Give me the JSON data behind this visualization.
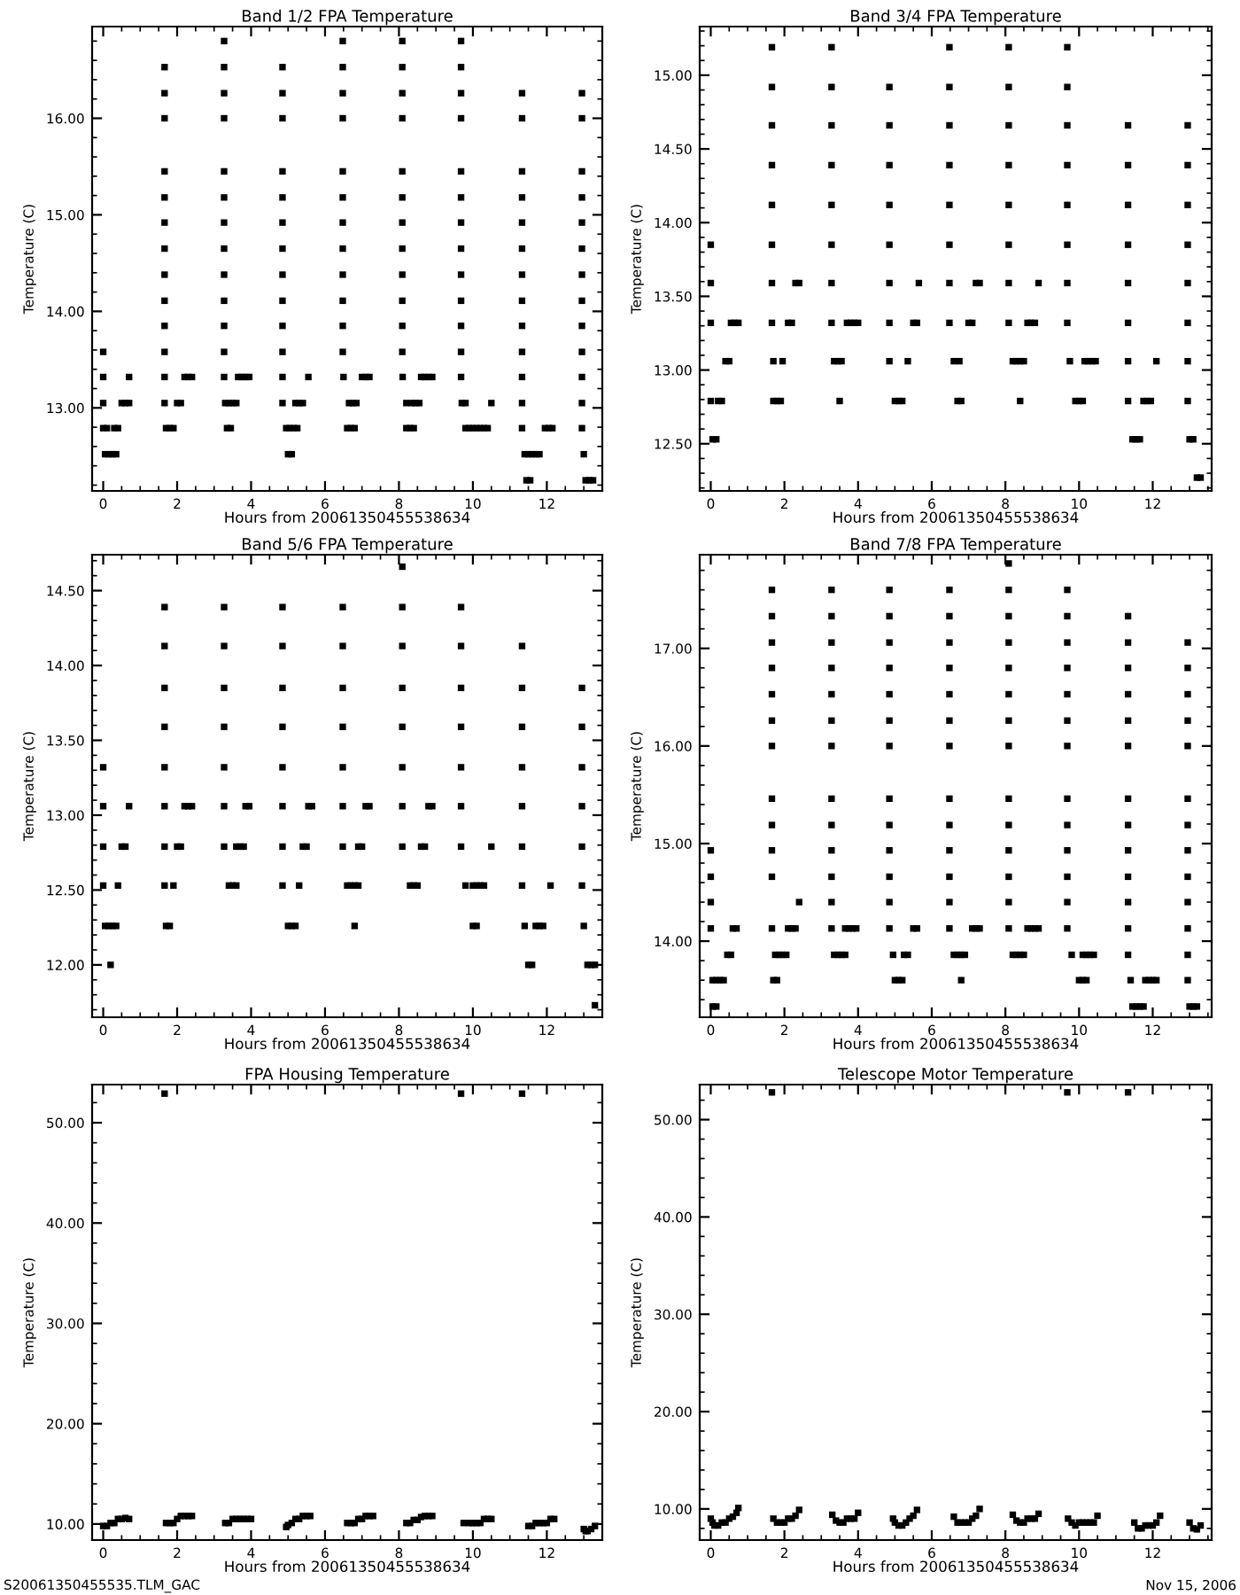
{
  "chart_data": [
    {
      "type": "scatter",
      "title": "Band 1/2 FPA Temperature",
      "xlabel": "Hours from 20061350455538634",
      "ylabel": "Temperature (C)",
      "xlim": [
        -0.3,
        13.5
      ],
      "xticks": [
        0,
        2,
        4,
        6,
        8,
        10,
        12
      ],
      "ylim": [
        12.14,
        16.95
      ],
      "yticks": [
        {
          "value": 13,
          "label": "13.00"
        },
        {
          "value": 14,
          "label": "14.00"
        },
        {
          "value": 15,
          "label": "15.00"
        },
        {
          "value": 16,
          "label": "16.00"
        }
      ],
      "marker": "square",
      "grid": false,
      "series": [
        {
          "color": "#000000",
          "x": [
            0,
            0,
            0,
            0,
            0.1,
            0.05,
            0.15,
            0.25,
            0.35,
            0.3,
            0.4,
            0.5,
            0.6,
            0.7,
            0.7,
            1.66,
            1.66,
            1.66,
            1.66,
            1.66,
            1.66,
            1.66,
            1.66,
            1.66,
            1.66,
            1.66,
            1.66,
            1.66,
            1.7,
            1.8,
            1.9,
            2.0,
            2.1,
            2.2,
            2.3,
            2.4,
            3.27,
            3.27,
            3.27,
            3.27,
            3.27,
            3.27,
            3.27,
            3.27,
            3.27,
            3.27,
            3.27,
            3.27,
            3.27,
            3.35,
            3.45,
            3.3,
            3.4,
            3.5,
            3.6,
            3.65,
            3.75,
            3.85,
            3.95,
            4.85,
            4.85,
            4.85,
            4.85,
            4.85,
            4.85,
            4.85,
            4.85,
            4.85,
            4.85,
            4.85,
            4.85,
            4.85,
            4.95,
            5.05,
            5.15,
            5.25,
            5.0,
            5.1,
            5.2,
            5.3,
            5.4,
            5.55,
            6.48,
            6.48,
            6.48,
            6.48,
            6.48,
            6.48,
            6.48,
            6.48,
            6.48,
            6.48,
            6.48,
            6.48,
            6.5,
            6.6,
            6.7,
            6.8,
            6.65,
            6.75,
            6.85,
            7.0,
            7.1,
            7.2,
            8.09,
            8.09,
            8.09,
            8.09,
            8.09,
            8.09,
            8.09,
            8.09,
            8.09,
            8.09,
            8.09,
            8.09,
            8.1,
            8.2,
            8.3,
            8.4,
            8.2,
            8.35,
            8.45,
            8.55,
            8.6,
            8.7,
            8.8,
            8.9,
            9.68,
            9.68,
            9.68,
            9.68,
            9.68,
            9.68,
            9.68,
            9.68,
            9.68,
            9.68,
            9.68,
            9.68,
            9.68,
            9.7,
            9.8,
            9.8,
            9.9,
            10.0,
            10.1,
            10.2,
            10.3,
            10.4,
            10.5,
            11.33,
            11.33,
            11.33,
            11.33,
            11.33,
            11.33,
            11.33,
            11.33,
            11.33,
            11.33,
            11.33,
            11.33,
            11.33,
            11.4,
            11.5,
            11.6,
            11.7,
            11.8,
            11.45,
            11.55,
            11.95,
            12.05,
            12.15,
            12.95,
            12.95,
            12.95,
            12.95,
            12.95,
            12.95,
            12.95,
            12.95,
            12.95,
            12.95,
            12.95,
            12.95,
            12.95,
            13.0,
            13.05,
            13.15,
            13.25
          ],
          "values": [
            13.58,
            13.32,
            13.05,
            12.79,
            12.79,
            12.52,
            12.52,
            12.52,
            12.52,
            12.79,
            12.79,
            13.05,
            13.05,
            13.05,
            13.32,
            13.05,
            13.32,
            13.58,
            13.85,
            14.11,
            14.38,
            14.65,
            14.92,
            15.18,
            15.45,
            16.0,
            16.26,
            16.53,
            12.79,
            12.79,
            12.79,
            13.05,
            13.05,
            13.32,
            13.32,
            13.32,
            13.32,
            13.58,
            13.85,
            14.11,
            14.38,
            14.65,
            14.92,
            15.18,
            15.45,
            16.0,
            16.26,
            16.53,
            16.8,
            12.79,
            12.79,
            13.05,
            13.05,
            13.05,
            13.05,
            13.32,
            13.32,
            13.32,
            13.32,
            13.32,
            13.58,
            13.85,
            14.11,
            14.38,
            14.65,
            14.92,
            15.18,
            15.45,
            16.0,
            16.26,
            16.53,
            13.05,
            12.79,
            12.79,
            12.79,
            12.79,
            12.52,
            12.52,
            13.05,
            13.05,
            13.05,
            13.32,
            13.58,
            13.85,
            14.11,
            14.38,
            14.65,
            14.92,
            15.18,
            15.45,
            16.0,
            16.26,
            16.53,
            16.8,
            13.32,
            12.79,
            12.79,
            12.79,
            13.05,
            13.05,
            13.05,
            13.32,
            13.32,
            13.32,
            13.58,
            13.85,
            14.11,
            14.38,
            14.65,
            14.92,
            15.18,
            15.45,
            16.0,
            16.26,
            16.53,
            16.8,
            13.32,
            12.79,
            12.79,
            12.79,
            13.05,
            13.05,
            13.05,
            13.05,
            13.32,
            13.32,
            13.32,
            13.32,
            13.32,
            13.58,
            13.85,
            14.11,
            14.38,
            14.65,
            14.92,
            15.18,
            15.45,
            16.0,
            16.26,
            16.53,
            16.8,
            13.05,
            13.05,
            12.79,
            12.79,
            12.79,
            12.79,
            12.79,
            12.79,
            12.79,
            13.05,
            12.79,
            13.05,
            13.32,
            13.58,
            13.85,
            14.11,
            14.38,
            14.65,
            14.92,
            15.18,
            15.45,
            16.0,
            16.26,
            12.52,
            12.52,
            12.52,
            12.52,
            12.52,
            12.25,
            12.25,
            12.79,
            12.79,
            12.79,
            12.79,
            13.05,
            13.32,
            13.58,
            13.85,
            14.11,
            14.38,
            14.65,
            14.92,
            15.18,
            15.45,
            16.0,
            16.26,
            12.52,
            12.25,
            12.25,
            12.25
          ]
        }
      ]
    },
    {
      "type": "scatter",
      "title": "Band 3/4 FPA Temperature",
      "xlabel": "Hours from 20061350455538634",
      "ylabel": "Temperature (C)",
      "xlim": [
        -0.3,
        13.6
      ],
      "xticks": [
        0,
        2,
        4,
        6,
        8,
        10,
        12
      ],
      "ylim": [
        12.18,
        15.33
      ],
      "yticks": [
        {
          "value": 12.5,
          "label": "12.50"
        },
        {
          "value": 13,
          "label": "13.00"
        },
        {
          "value": 13.5,
          "label": "13.50"
        },
        {
          "value": 14,
          "label": "14.00"
        },
        {
          "value": 14.5,
          "label": "14.50"
        },
        {
          "value": 15,
          "label": "15.00"
        }
      ],
      "marker": "square",
      "grid": false,
      "series": [
        {
          "color": "#000000",
          "x": [
            0,
            0,
            0,
            0,
            0.05,
            0.15,
            0.2,
            0.3,
            0.4,
            0.5,
            0.55,
            0.65,
            0.75,
            1.66,
            1.66,
            1.66,
            1.66,
            1.66,
            1.66,
            1.66,
            1.66,
            1.7,
            1.8,
            1.9,
            1.7,
            1.95,
            2.1,
            2.2,
            2.3,
            2.4,
            3.28,
            3.28,
            3.28,
            3.28,
            3.28,
            3.28,
            3.28,
            3.28,
            3.5,
            3.35,
            3.45,
            3.55,
            3.7,
            3.8,
            3.9,
            4.0,
            4.85,
            4.85,
            4.85,
            4.85,
            4.85,
            4.85,
            4.85,
            4.85,
            5.0,
            5.1,
            5.2,
            5.35,
            5.5,
            5.6,
            5.65,
            6.48,
            6.48,
            6.48,
            6.48,
            6.48,
            6.48,
            6.48,
            6.48,
            6.6,
            6.75,
            6.7,
            6.8,
            7.0,
            7.1,
            7.2,
            7.3,
            8.09,
            8.09,
            8.09,
            8.09,
            8.09,
            8.09,
            8.09,
            8.09,
            8.2,
            8.3,
            8.4,
            8.5,
            8.4,
            8.6,
            8.7,
            8.8,
            8.9,
            9.68,
            9.68,
            9.68,
            9.68,
            9.68,
            9.68,
            9.68,
            9.68,
            9.75,
            9.9,
            10.0,
            10.1,
            10.15,
            10.25,
            10.35,
            10.45,
            11.33,
            11.33,
            11.33,
            11.33,
            11.33,
            11.33,
            11.33,
            11.33,
            11.45,
            11.55,
            11.65,
            11.75,
            11.85,
            11.95,
            12.1,
            12.95,
            12.95,
            12.95,
            12.95,
            12.95,
            12.95,
            12.95,
            12.95,
            13.0,
            13.1,
            13.2,
            13.3
          ],
          "values": [
            13.85,
            13.59,
            13.32,
            12.79,
            12.53,
            12.53,
            12.79,
            12.79,
            13.06,
            13.06,
            13.32,
            13.32,
            13.32,
            13.32,
            13.59,
            13.85,
            14.12,
            14.39,
            14.66,
            14.92,
            15.19,
            12.79,
            12.79,
            12.79,
            13.06,
            13.06,
            13.32,
            13.32,
            13.59,
            13.59,
            13.32,
            13.59,
            13.85,
            14.12,
            14.39,
            14.66,
            14.92,
            15.19,
            12.79,
            13.06,
            13.06,
            13.06,
            13.32,
            13.32,
            13.32,
            13.32,
            13.06,
            13.32,
            13.59,
            13.85,
            14.12,
            14.39,
            14.66,
            14.92,
            12.79,
            12.79,
            12.79,
            13.06,
            13.32,
            13.32,
            13.59,
            13.32,
            13.59,
            13.85,
            14.12,
            14.39,
            14.66,
            14.92,
            15.19,
            13.06,
            13.06,
            12.79,
            12.79,
            13.32,
            13.32,
            13.59,
            13.59,
            13.32,
            13.59,
            13.85,
            14.12,
            14.39,
            14.66,
            14.92,
            15.19,
            13.06,
            13.06,
            13.06,
            13.06,
            12.79,
            13.32,
            13.32,
            13.32,
            13.59,
            13.32,
            13.59,
            13.85,
            14.12,
            14.39,
            14.66,
            14.92,
            15.19,
            13.06,
            12.79,
            12.79,
            12.79,
            13.06,
            13.06,
            13.06,
            13.06,
            12.79,
            13.06,
            13.32,
            13.59,
            13.85,
            14.12,
            14.39,
            14.66,
            12.53,
            12.53,
            12.53,
            12.79,
            12.79,
            12.79,
            13.06,
            12.79,
            13.06,
            13.32,
            13.59,
            13.85,
            14.12,
            14.39,
            14.66,
            12.53,
            12.53,
            12.27,
            12.27
          ]
        }
      ]
    },
    {
      "type": "scatter",
      "title": "Band 5/6 FPA Temperature",
      "xlabel": "Hours from 20061350455538634",
      "ylabel": "Temperature (C)",
      "xlim": [
        -0.3,
        13.5
      ],
      "xticks": [
        0,
        2,
        4,
        6,
        8,
        10,
        12
      ],
      "ylim": [
        11.65,
        14.74
      ],
      "yticks": [
        {
          "value": 12,
          "label": "12.00"
        },
        {
          "value": 12.5,
          "label": "12.50"
        },
        {
          "value": 13,
          "label": "13.00"
        },
        {
          "value": 13.5,
          "label": "13.50"
        },
        {
          "value": 14,
          "label": "14.00"
        },
        {
          "value": 14.5,
          "label": "14.50"
        }
      ],
      "marker": "square",
      "grid": false,
      "series": [
        {
          "color": "#000000",
          "x": [
            0,
            0,
            0,
            0,
            0.05,
            0.15,
            0.25,
            0.35,
            0.2,
            0.4,
            0.5,
            0.6,
            0.7,
            1.66,
            1.66,
            1.66,
            1.66,
            1.66,
            1.66,
            1.66,
            1.66,
            1.7,
            1.8,
            1.9,
            2.0,
            2.1,
            2.2,
            2.3,
            2.4,
            3.27,
            3.27,
            3.27,
            3.27,
            3.27,
            3.27,
            3.27,
            3.4,
            3.5,
            3.6,
            3.6,
            3.7,
            3.8,
            3.85,
            3.95,
            4.85,
            4.85,
            4.85,
            4.85,
            4.85,
            4.85,
            4.85,
            4.85,
            5.0,
            5.1,
            5.2,
            5.3,
            5.4,
            5.5,
            5.55,
            5.65,
            6.48,
            6.48,
            6.48,
            6.48,
            6.48,
            6.48,
            6.48,
            6.8,
            6.6,
            6.7,
            6.8,
            6.9,
            6.9,
            7.0,
            7.1,
            7.2,
            8.09,
            8.09,
            8.09,
            8.09,
            8.09,
            8.09,
            8.09,
            8.09,
            8.3,
            8.4,
            8.5,
            8.6,
            8.7,
            8.8,
            8.9,
            9.68,
            9.68,
            9.68,
            9.68,
            9.68,
            9.68,
            9.68,
            9.8,
            10.0,
            10.1,
            10.0,
            10.1,
            10.2,
            10.3,
            10.5,
            11.33,
            11.33,
            11.33,
            11.33,
            11.33,
            11.33,
            11.33,
            11.4,
            11.5,
            11.6,
            11.7,
            11.8,
            11.9,
            12.1,
            12.95,
            12.95,
            12.95,
            12.95,
            12.95,
            12.95,
            13.0,
            13.1,
            13.2,
            13.3,
            13.3
          ],
          "values": [
            13.32,
            13.06,
            12.79,
            12.53,
            12.26,
            12.26,
            12.26,
            12.26,
            12.0,
            12.53,
            12.79,
            12.79,
            13.06,
            12.53,
            12.79,
            13.06,
            13.32,
            13.59,
            13.85,
            14.13,
            14.39,
            12.26,
            12.26,
            12.53,
            12.79,
            12.79,
            13.06,
            13.06,
            13.06,
            12.79,
            13.06,
            13.32,
            13.59,
            13.85,
            14.13,
            14.39,
            12.53,
            12.53,
            12.53,
            12.79,
            12.79,
            12.79,
            13.06,
            13.06,
            12.53,
            12.79,
            13.06,
            13.32,
            13.59,
            13.85,
            14.13,
            14.39,
            12.26,
            12.26,
            12.26,
            12.53,
            12.79,
            12.79,
            13.06,
            13.06,
            12.79,
            13.06,
            13.32,
            13.59,
            13.85,
            14.13,
            14.39,
            12.26,
            12.53,
            12.53,
            12.53,
            12.53,
            12.79,
            12.79,
            13.06,
            13.06,
            12.79,
            13.06,
            13.32,
            13.59,
            13.85,
            14.13,
            14.39,
            14.66,
            12.53,
            12.53,
            12.53,
            12.79,
            12.79,
            13.06,
            13.06,
            12.79,
            13.06,
            13.32,
            13.59,
            13.85,
            14.13,
            14.39,
            12.53,
            12.26,
            12.26,
            12.53,
            12.53,
            12.53,
            12.53,
            12.79,
            12.53,
            12.79,
            13.06,
            13.32,
            13.59,
            13.85,
            14.13,
            12.26,
            12.0,
            12.0,
            12.26,
            12.26,
            12.26,
            12.53,
            12.53,
            12.79,
            13.06,
            13.32,
            13.59,
            13.85,
            12.26,
            12.0,
            12.0,
            12.0,
            11.73
          ]
        }
      ]
    },
    {
      "type": "scatter",
      "title": "Band 7/8 FPA Temperature",
      "xlabel": "Hours from 20061350455538634",
      "ylabel": "Temperature (C)",
      "xlim": [
        -0.3,
        13.6
      ],
      "xticks": [
        0,
        2,
        4,
        6,
        8,
        10,
        12
      ],
      "ylim": [
        13.22,
        17.96
      ],
      "yticks": [
        {
          "value": 14,
          "label": "14.00"
        },
        {
          "value": 15,
          "label": "15.00"
        },
        {
          "value": 16,
          "label": "16.00"
        },
        {
          "value": 17,
          "label": "17.00"
        }
      ],
      "marker": "square",
      "grid": false,
      "series": [
        {
          "color": "#000000",
          "x": [
            0,
            0,
            0,
            0,
            0.05,
            0.15,
            0.05,
            0.15,
            0.25,
            0.35,
            0.45,
            0.55,
            0.6,
            0.7,
            1.66,
            1.66,
            1.66,
            1.66,
            1.66,
            1.66,
            1.66,
            1.66,
            1.66,
            1.66,
            1.66,
            1.66,
            1.7,
            1.8,
            1.75,
            1.85,
            1.95,
            2.05,
            2.1,
            2.2,
            2.3,
            2.4,
            3.28,
            3.28,
            3.28,
            3.28,
            3.28,
            3.28,
            3.28,
            3.28,
            3.28,
            3.28,
            3.28,
            3.28,
            3.28,
            3.35,
            3.45,
            3.55,
            3.65,
            3.65,
            3.75,
            3.85,
            3.95,
            4.85,
            4.85,
            4.85,
            4.85,
            4.85,
            4.85,
            4.85,
            4.85,
            4.85,
            4.85,
            4.85,
            4.85,
            4.85,
            5.0,
            5.1,
            5.2,
            4.95,
            5.25,
            5.35,
            5.5,
            5.6,
            6.48,
            6.48,
            6.48,
            6.48,
            6.48,
            6.48,
            6.48,
            6.48,
            6.48,
            6.48,
            6.48,
            6.48,
            6.48,
            6.8,
            6.6,
            6.7,
            6.8,
            6.9,
            7.1,
            7.2,
            7.3,
            8.09,
            8.09,
            8.09,
            8.09,
            8.09,
            8.09,
            8.09,
            8.09,
            8.09,
            8.09,
            8.09,
            8.09,
            8.09,
            8.09,
            8.2,
            8.3,
            8.4,
            8.5,
            8.6,
            8.7,
            8.8,
            8.9,
            9.68,
            9.68,
            9.68,
            9.68,
            9.68,
            9.68,
            9.68,
            9.68,
            9.68,
            9.68,
            9.68,
            9.68,
            9.68,
            9.8,
            10.0,
            10.1,
            10.2,
            10.1,
            10.2,
            10.3,
            10.4,
            11.33,
            11.33,
            11.33,
            11.33,
            11.33,
            11.33,
            11.33,
            11.33,
            11.33,
            11.33,
            11.33,
            11.33,
            11.33,
            11.4,
            11.45,
            11.55,
            11.65,
            11.75,
            11.8,
            11.9,
            12.0,
            12.1,
            12.95,
            12.95,
            12.95,
            12.95,
            12.95,
            12.95,
            12.95,
            12.95,
            12.95,
            12.95,
            12.95,
            12.95,
            12.95,
            13.0,
            13.1,
            13.2
          ],
          "values": [
            14.93,
            14.66,
            14.4,
            14.13,
            13.33,
            13.33,
            13.6,
            13.6,
            13.6,
            13.6,
            13.86,
            13.86,
            14.13,
            14.13,
            14.13,
            14.66,
            14.93,
            15.19,
            15.46,
            16.0,
            16.26,
            16.53,
            16.8,
            17.06,
            17.33,
            17.6,
            13.6,
            13.6,
            13.86,
            13.86,
            13.86,
            13.86,
            14.13,
            14.13,
            14.13,
            14.4,
            14.13,
            14.4,
            14.66,
            14.93,
            15.19,
            15.46,
            16.0,
            16.26,
            16.53,
            16.8,
            17.06,
            17.33,
            17.6,
            13.86,
            13.86,
            13.86,
            13.86,
            14.13,
            14.13,
            14.13,
            14.13,
            14.13,
            14.4,
            14.66,
            14.93,
            15.19,
            15.46,
            16.0,
            16.26,
            16.53,
            16.8,
            17.06,
            17.33,
            17.6,
            13.6,
            13.6,
            13.6,
            13.86,
            13.86,
            13.86,
            14.13,
            14.13,
            14.13,
            14.4,
            14.66,
            14.93,
            15.19,
            15.46,
            16.0,
            16.26,
            16.53,
            16.8,
            17.06,
            17.33,
            17.6,
            13.6,
            13.86,
            13.86,
            13.86,
            13.86,
            14.13,
            14.13,
            14.13,
            14.13,
            14.4,
            14.66,
            14.93,
            15.19,
            15.46,
            16.0,
            16.26,
            16.53,
            16.8,
            17.06,
            17.33,
            17.6,
            17.87,
            13.86,
            13.86,
            13.86,
            13.86,
            14.13,
            14.13,
            14.13,
            14.13,
            14.13,
            14.4,
            14.66,
            14.93,
            15.19,
            15.46,
            16.0,
            16.26,
            16.53,
            16.8,
            17.06,
            17.33,
            17.6,
            13.86,
            13.6,
            13.6,
            13.6,
            13.86,
            13.86,
            13.86,
            13.86,
            13.86,
            14.13,
            14.4,
            14.66,
            14.93,
            15.19,
            15.46,
            16.0,
            16.26,
            16.53,
            16.8,
            17.06,
            17.33,
            13.6,
            13.33,
            13.33,
            13.33,
            13.33,
            13.6,
            13.6,
            13.6,
            13.6,
            13.6,
            13.86,
            14.13,
            14.4,
            14.66,
            14.93,
            15.19,
            15.46,
            16.0,
            16.26,
            16.53,
            16.8,
            17.06,
            13.33,
            13.33,
            13.33
          ]
        }
      ]
    },
    {
      "type": "scatter",
      "title": "FPA Housing Temperature",
      "xlabel": "Hours from 20061350455538634",
      "ylabel": "Temperature (C)",
      "xlim": [
        -0.3,
        13.5
      ],
      "xticks": [
        0,
        2,
        4,
        6,
        8,
        10,
        12
      ],
      "ylim": [
        8.4,
        53.8
      ],
      "yticks": [
        {
          "value": 10,
          "label": "10.00"
        },
        {
          "value": 20,
          "label": "20.00"
        },
        {
          "value": 30,
          "label": "30.00"
        },
        {
          "value": 40,
          "label": "40.00"
        },
        {
          "value": 50,
          "label": "50.00"
        }
      ],
      "marker": "square",
      "grid": false,
      "annotations": [
        "S20061350455535.TLM_GAC"
      ],
      "series": [
        {
          "color": "#000000",
          "x": [
            0,
            0.1,
            0.2,
            0.3,
            0.4,
            0.5,
            0.6,
            0.7,
            1.66,
            1.7,
            1.8,
            1.9,
            2.0,
            2.1,
            2.2,
            2.3,
            2.4,
            3.3,
            3.4,
            3.5,
            3.6,
            3.7,
            3.8,
            3.9,
            4.0,
            4.95,
            5.0,
            5.1,
            5.2,
            5.3,
            5.4,
            5.5,
            5.6,
            6.6,
            6.7,
            6.8,
            6.9,
            7.0,
            7.1,
            7.2,
            7.3,
            8.2,
            8.3,
            8.4,
            8.5,
            8.6,
            8.7,
            8.8,
            8.9,
            9.68,
            9.75,
            9.9,
            10.0,
            10.1,
            10.2,
            10.3,
            10.4,
            10.5,
            11.33,
            11.5,
            11.6,
            11.7,
            11.8,
            11.9,
            12.0,
            12.1,
            12.2,
            13.0,
            13.05,
            13.1,
            13.2,
            13.3
          ],
          "values": [
            9.8,
            9.8,
            10.1,
            10.1,
            10.5,
            10.5,
            10.6,
            10.5,
            52.9,
            10.1,
            10.1,
            10.1,
            10.5,
            10.8,
            10.8,
            10.8,
            10.8,
            10.1,
            10.1,
            10.5,
            10.5,
            10.5,
            10.5,
            10.5,
            10.5,
            9.7,
            9.9,
            10.1,
            10.5,
            10.5,
            10.8,
            10.8,
            10.8,
            10.1,
            10.1,
            10.1,
            10.5,
            10.5,
            10.8,
            10.8,
            10.8,
            10.1,
            10.1,
            10.4,
            10.4,
            10.7,
            10.8,
            10.8,
            10.8,
            52.9,
            10.1,
            10.1,
            10.1,
            10.1,
            10.1,
            10.5,
            10.5,
            10.5,
            52.9,
            9.8,
            9.8,
            10.1,
            10.1,
            10.1,
            10.1,
            10.5,
            10.5,
            9.5,
            9.3,
            9.3,
            9.5,
            9.8
          ]
        }
      ]
    },
    {
      "type": "scatter",
      "title": "Telescope Motor Temperature",
      "xlabel": "Hours from 20061350455538634",
      "ylabel": "Temperature (C)",
      "xlim": [
        -0.3,
        13.6
      ],
      "xticks": [
        0,
        2,
        4,
        6,
        8,
        10,
        12
      ],
      "ylim": [
        6.8,
        53.6
      ],
      "yticks": [
        {
          "value": 10,
          "label": "10.00"
        },
        {
          "value": 20,
          "label": "20.00"
        },
        {
          "value": 30,
          "label": "30.00"
        },
        {
          "value": 40,
          "label": "40.00"
        },
        {
          "value": 50,
          "label": "50.00"
        }
      ],
      "marker": "square",
      "grid": false,
      "annotations": [
        "Nov 15, 2006"
      ],
      "series": [
        {
          "color": "#000000",
          "x": [
            0,
            0.05,
            0.1,
            0.2,
            0.3,
            0.4,
            0.5,
            0.6,
            0.7,
            0.75,
            1.66,
            1.7,
            1.8,
            1.9,
            2.0,
            2.1,
            2.2,
            2.3,
            2.4,
            3.3,
            3.4,
            3.5,
            3.6,
            3.7,
            3.8,
            3.9,
            4.0,
            4.95,
            5.0,
            5.1,
            5.2,
            5.3,
            5.4,
            5.5,
            5.6,
            6.6,
            6.7,
            6.8,
            6.9,
            7.0,
            7.1,
            7.2,
            7.3,
            8.2,
            8.3,
            8.4,
            8.5,
            8.6,
            8.7,
            8.8,
            8.9,
            9.68,
            9.7,
            9.8,
            9.9,
            10.0,
            10.1,
            10.2,
            10.3,
            10.4,
            10.5,
            11.33,
            11.5,
            11.6,
            11.7,
            11.8,
            11.9,
            12.0,
            12.1,
            12.2,
            13.0,
            13.1,
            13.2,
            13.3
          ],
          "values": [
            9.0,
            8.6,
            8.3,
            8.3,
            8.6,
            8.6,
            9.0,
            9.2,
            9.6,
            10.1,
            52.8,
            9.0,
            8.6,
            8.6,
            8.6,
            9.0,
            9.0,
            9.3,
            9.9,
            9.4,
            8.8,
            8.6,
            8.6,
            9.0,
            9.0,
            9.0,
            9.6,
            9.0,
            8.6,
            8.3,
            8.3,
            8.6,
            9.0,
            9.3,
            9.9,
            9.2,
            8.6,
            8.6,
            8.6,
            8.6,
            9.0,
            9.3,
            10.0,
            9.4,
            8.8,
            8.6,
            8.6,
            9.0,
            9.0,
            9.0,
            9.5,
            52.8,
            9.0,
            8.6,
            8.3,
            8.6,
            8.6,
            8.6,
            8.6,
            8.6,
            9.3,
            52.8,
            8.6,
            8.0,
            8.0,
            8.3,
            8.3,
            8.3,
            8.6,
            9.3,
            8.6,
            8.0,
            7.9,
            8.3
          ]
        }
      ]
    }
  ]
}
